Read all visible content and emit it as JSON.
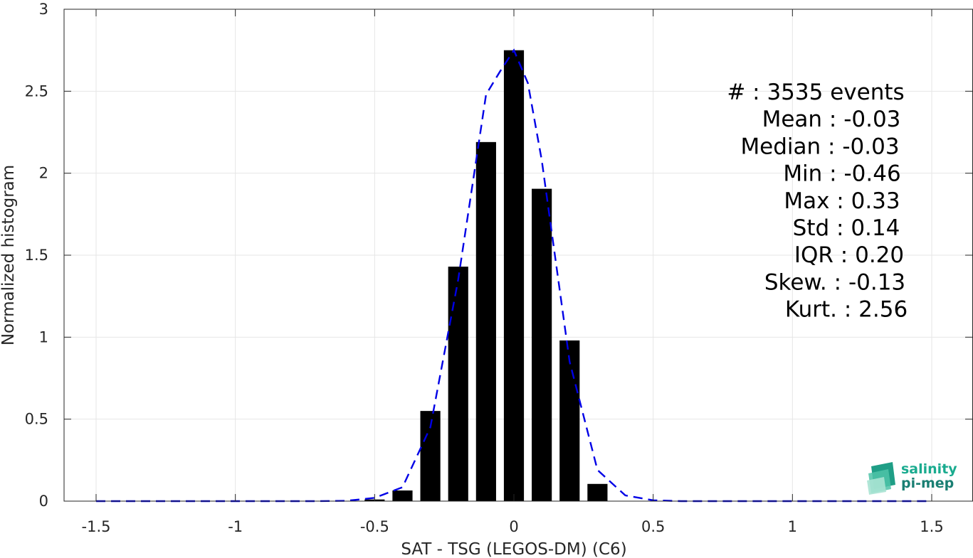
{
  "chart_data": {
    "type": "bar",
    "xlabel": "SAT - TSG (LEGOS-DM) (C6)",
    "ylabel": "Normalized histogram",
    "xlim": [
      -1.5,
      1.5
    ],
    "ylim": [
      0,
      3
    ],
    "grid": true,
    "xticks": [
      -1.5,
      -1,
      -0.5,
      0,
      0.5,
      1,
      1.5
    ],
    "xtick_labels": [
      "-1.5",
      "-1",
      "-0.5",
      "0",
      "0.5",
      "1",
      "1.5"
    ],
    "yticks": [
      0,
      0.5,
      1,
      1.5,
      2,
      2.5,
      3
    ],
    "ytick_labels": [
      "0",
      "0.5",
      "1",
      "1.5",
      "2",
      "2.5",
      "3"
    ],
    "bar_width": 0.072,
    "bars": {
      "x": [
        -0.5,
        -0.4,
        -0.3,
        -0.2,
        -0.1,
        0.0,
        0.1,
        0.2,
        0.3
      ],
      "values": [
        0.01,
        0.065,
        0.55,
        1.43,
        2.19,
        2.75,
        1.905,
        0.98,
        0.105
      ],
      "color": "#000000"
    },
    "fit_line": {
      "style": "dashed",
      "color": "#0000e6",
      "x": [
        -1.5,
        -1.4,
        -1.3,
        -1.2,
        -1.1,
        -1.0,
        -0.9,
        -0.8,
        -0.7,
        -0.6,
        -0.5,
        -0.4,
        -0.3,
        -0.2,
        -0.1,
        -0.05,
        0.0,
        0.05,
        0.1,
        0.2,
        0.3,
        0.4,
        0.5,
        0.6,
        0.7,
        0.8,
        0.9,
        1.0,
        1.1,
        1.2,
        1.3,
        1.4,
        1.5
      ],
      "y": [
        0,
        0,
        0,
        0,
        0,
        0,
        0,
        0,
        0,
        0.002,
        0.02,
        0.085,
        0.45,
        1.35,
        2.48,
        2.62,
        2.75,
        2.55,
        2.08,
        0.85,
        0.19,
        0.035,
        0.005,
        0,
        0,
        0,
        0,
        0,
        0,
        0,
        0,
        0,
        0
      ]
    },
    "stats": [
      "#  : 3535 events",
      "Mean : -0.03",
      "Median : -0.03",
      "Min : -0.46",
      "Max : 0.33",
      "Std : 0.14",
      "IQR : 0.20",
      "Skew. : -0.13",
      "Kurt. : 2.56"
    ]
  },
  "logo": {
    "line1": "salinity",
    "line2": "pi-mep",
    "color1": "#1aab8f",
    "color2": "#1a7f73"
  }
}
